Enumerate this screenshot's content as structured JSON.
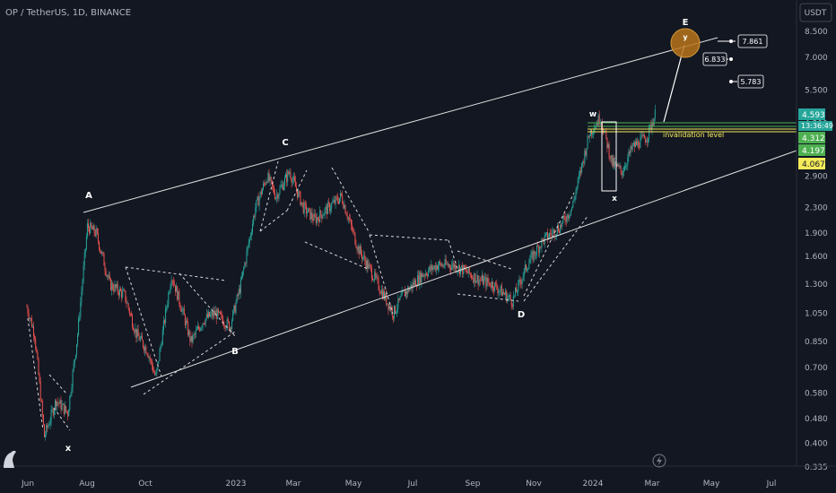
{
  "header": {
    "title": "OP / TetherUS, 1D, BINANCE"
  },
  "price_axis": {
    "currency": "USDT",
    "ticks": [
      "8.500",
      "7.000",
      "5.500",
      "4.300",
      "2.900",
      "2.300",
      "1.900",
      "1.600",
      "1.300",
      "1.050",
      "0.850",
      "0.700",
      "0.580",
      "0.480",
      "0.400",
      "0.335"
    ],
    "current_price": "4.593",
    "countdown": "13:36:49",
    "level_labels": [
      {
        "value": "4.312",
        "color": "#4caf50"
      },
      {
        "value": "4.197",
        "color": "#4caf50"
      },
      {
        "value": "4.067",
        "color": "#f5eb5a"
      }
    ]
  },
  "time_axis": {
    "ticks": [
      "Jun",
      "Aug",
      "Oct",
      "2023",
      "Mar",
      "May",
      "Jul",
      "Sep",
      "Nov",
      "2024",
      "Mar",
      "May",
      "Jul"
    ]
  },
  "wave_labels": [
    "A",
    "x",
    "B",
    "C",
    "D",
    "w",
    "x",
    "E",
    "y"
  ],
  "annotations": {
    "invalidation": "invalidation level",
    "targets": [
      "7.861",
      "6.833",
      "5.783"
    ]
  },
  "colors": {
    "up": "#26a69a",
    "down": "#ef5350",
    "bg": "#131722",
    "accent": "#f5eb5a",
    "circle": "#b8741a"
  },
  "chart_data": {
    "type": "candlestick",
    "title": "OP / TetherUS, 1D, BINANCE",
    "xlabel": "",
    "ylabel": "",
    "y_scale": "log",
    "grid": false,
    "ylim": [
      0.335,
      9.0
    ],
    "x_ticks": [
      "Jun",
      "Aug",
      "Oct",
      "2023",
      "Mar",
      "May",
      "Jul",
      "Sep",
      "Nov",
      "2024",
      "Mar",
      "May",
      "Jul"
    ],
    "price_path": [
      [
        "2022-05-31",
        1.1
      ],
      [
        "2022-06-08",
        0.9
      ],
      [
        "2022-06-18",
        0.42
      ],
      [
        "2022-06-30",
        0.55
      ],
      [
        "2022-07-12",
        0.5
      ],
      [
        "2022-07-22",
        0.9
      ],
      [
        "2022-08-01",
        2.0
      ],
      [
        "2022-08-10",
        1.9
      ],
      [
        "2022-08-24",
        1.3
      ],
      [
        "2022-09-08",
        1.2
      ],
      [
        "2022-09-20",
        0.9
      ],
      [
        "2022-10-01",
        0.8
      ],
      [
        "2022-10-10",
        0.65
      ],
      [
        "2022-10-26",
        1.4
      ],
      [
        "2022-11-05",
        1.1
      ],
      [
        "2022-11-15",
        0.85
      ],
      [
        "2022-11-28",
        1.0
      ],
      [
        "2022-12-10",
        1.05
      ],
      [
        "2022-12-25",
        0.95
      ],
      [
        "2023-01-05",
        1.3
      ],
      [
        "2023-01-20",
        2.3
      ],
      [
        "2023-02-01",
        2.9
      ],
      [
        "2023-02-10",
        2.5
      ],
      [
        "2023-02-24",
        3.0
      ],
      [
        "2023-03-10",
        2.3
      ],
      [
        "2023-03-22",
        2.1
      ],
      [
        "2023-04-05",
        2.3
      ],
      [
        "2023-04-18",
        2.5
      ],
      [
        "2023-05-05",
        1.7
      ],
      [
        "2023-05-20",
        1.4
      ],
      [
        "2023-06-10",
        1.05
      ],
      [
        "2023-06-20",
        1.2
      ],
      [
        "2023-07-10",
        1.4
      ],
      [
        "2023-07-25",
        1.5
      ],
      [
        "2023-08-10",
        1.5
      ],
      [
        "2023-08-20",
        1.45
      ],
      [
        "2023-09-05",
        1.35
      ],
      [
        "2023-09-20",
        1.3
      ],
      [
        "2023-10-10",
        1.15
      ],
      [
        "2023-10-25",
        1.5
      ],
      [
        "2023-11-10",
        1.8
      ],
      [
        "2023-11-28",
        2.0
      ],
      [
        "2023-12-10",
        2.3
      ],
      [
        "2023-12-28",
        4.0
      ],
      [
        "2024-01-08",
        4.5
      ],
      [
        "2024-01-20",
        3.2
      ],
      [
        "2024-01-30",
        3.0
      ],
      [
        "2024-02-10",
        3.6
      ],
      [
        "2024-02-25",
        3.9
      ],
      [
        "2024-03-04",
        4.59
      ]
    ]
  }
}
